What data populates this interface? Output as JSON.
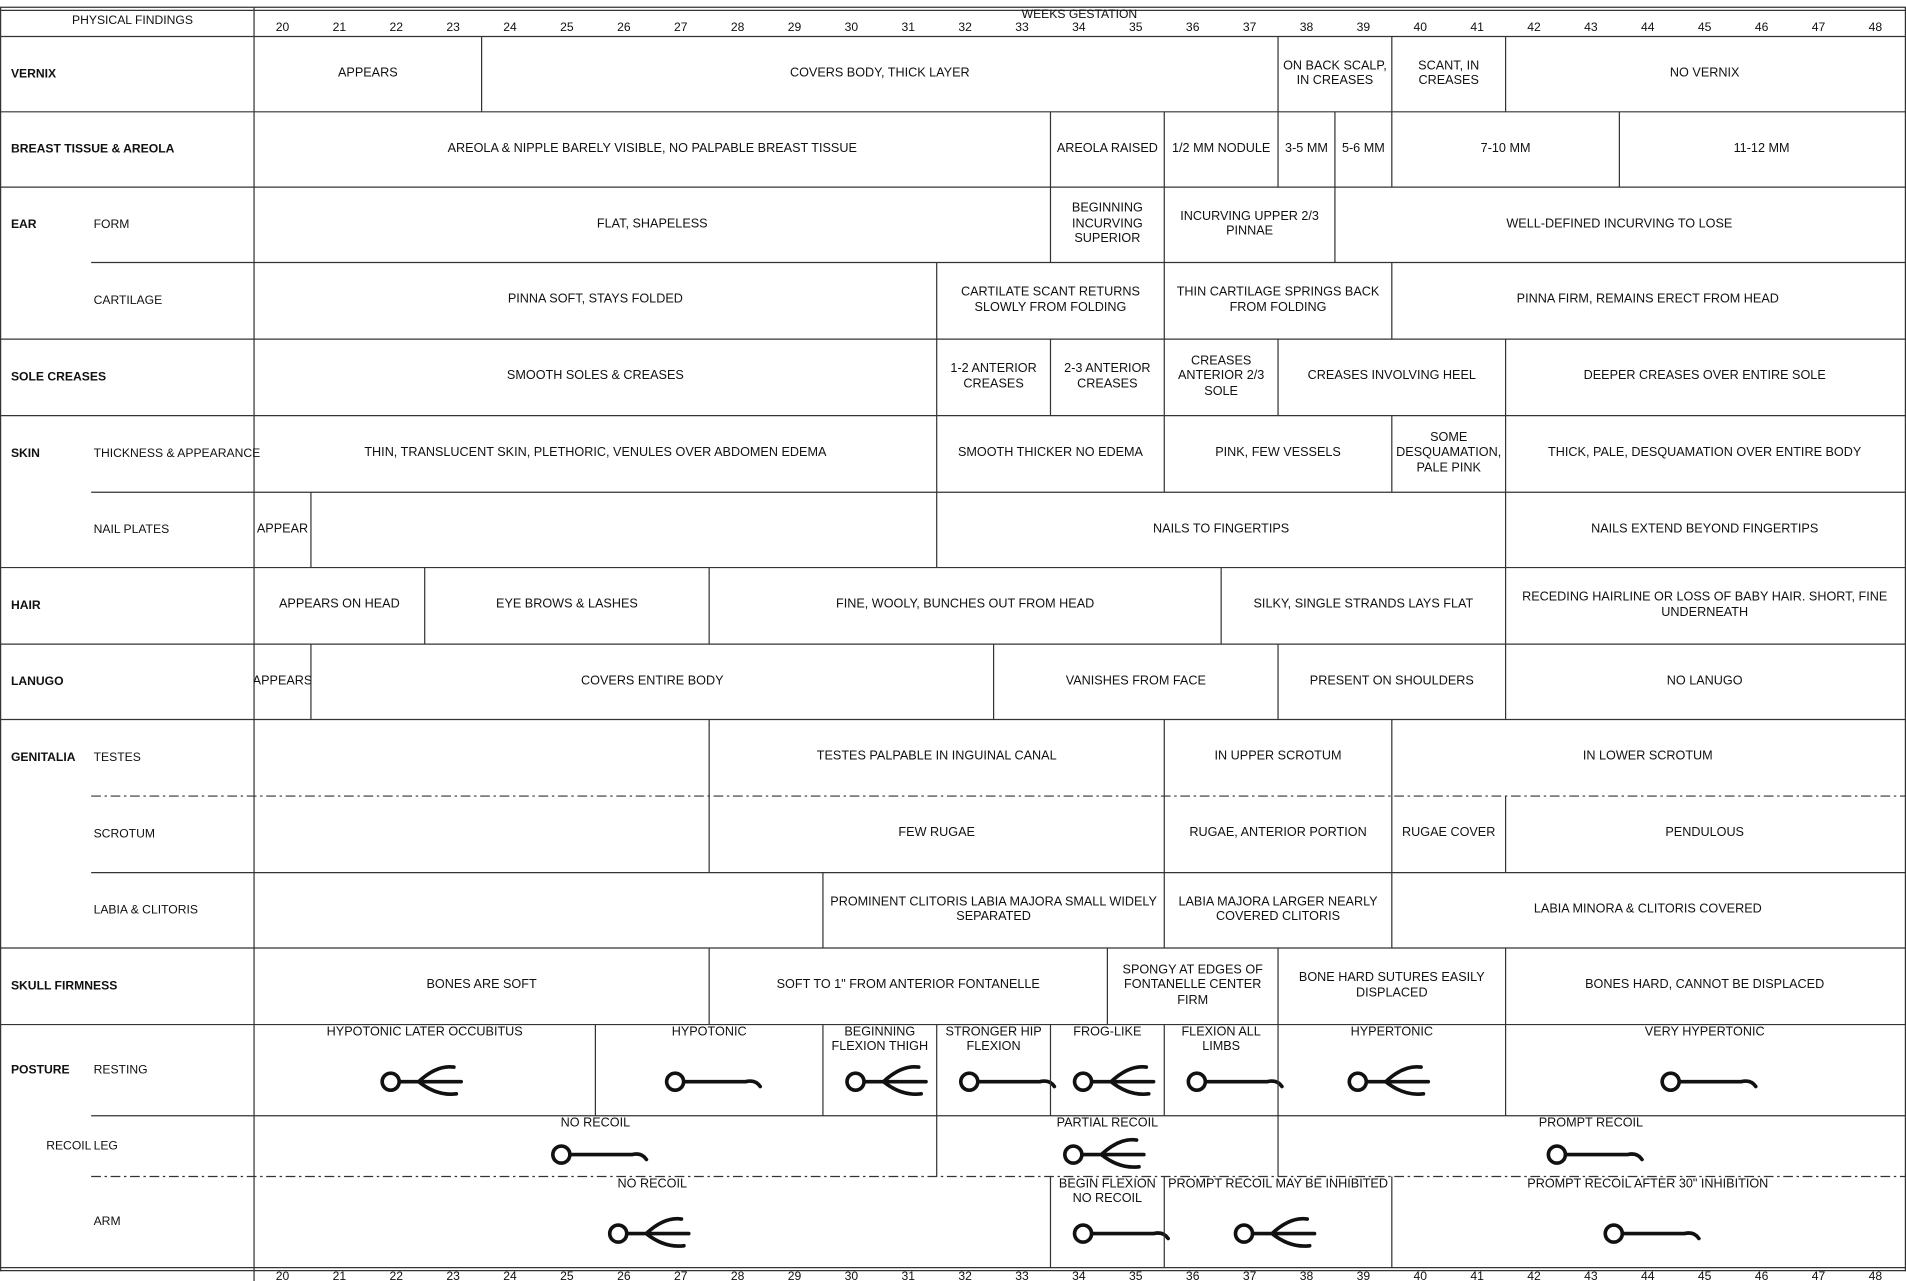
{
  "header": {
    "title": "PHYSICAL FINDINGS",
    "axis": "WEEKS GESTATION",
    "weeks": [
      20,
      21,
      22,
      23,
      24,
      25,
      26,
      27,
      28,
      29,
      30,
      31,
      32,
      33,
      34,
      35,
      36,
      37,
      38,
      39,
      40,
      41,
      42,
      43,
      44,
      45,
      46,
      47,
      48
    ]
  },
  "rows": [
    {
      "group": "VERNIX",
      "cells": [
        "APPEARS",
        "COVERS BODY, THICK LAYER",
        "ON BACK SCALP, IN CREASES",
        "SCANT, IN CREASES",
        "NO VERNIX"
      ]
    },
    {
      "group": "BREAST TISSUE & AREOLA",
      "cells": [
        "AREOLA & NIPPLE BARELY VISIBLE, NO PALPABLE BREAST TISSUE",
        "AREOLA RAISED",
        "1/2 MM NODULE",
        "3-5 MM",
        "5-6 MM",
        "7-10 MM",
        "11-12 MM"
      ]
    },
    {
      "group": "EAR",
      "label": "FORM",
      "cells": [
        "FLAT, SHAPELESS",
        "BEGINNING INCURVING SUPERIOR",
        "INCURVING UPPER 2/3 PINNAE",
        "WELL-DEFINED INCURVING TO LOSE"
      ]
    },
    {
      "label": "CARTILAGE",
      "cells": [
        "PINNA SOFT, STAYS FOLDED",
        "CARTILATE SCANT RETURNS SLOWLY FROM FOLDING",
        "THIN CARTILAGE SPRINGS BACK FROM FOLDING",
        "PINNA FIRM, REMAINS ERECT FROM HEAD"
      ]
    },
    {
      "group": "SOLE CREASES",
      "cells": [
        "SMOOTH SOLES & CREASES",
        "1-2 ANTERIOR CREASES",
        "2-3 ANTERIOR CREASES",
        "CREASES ANTERIOR 2/3 SOLE",
        "CREASES INVOLVING HEEL",
        "DEEPER CREASES OVER ENTIRE SOLE"
      ]
    },
    {
      "group": "SKIN",
      "label": "THICKNESS & APPEARANCE",
      "cells": [
        "THIN, TRANSLUCENT SKIN, PLETHORIC, VENULES OVER ABDOMEN EDEMA",
        "SMOOTH THICKER NO EDEMA",
        "PINK, FEW VESSELS",
        "SOME DESQUAMATION, PALE PINK",
        "THICK, PALE, DESQUAMATION OVER ENTIRE BODY"
      ]
    },
    {
      "label": "NAIL PLATES",
      "cells": [
        "APPEAR",
        null,
        "NAILS TO FINGERTIPS",
        "NAILS EXTEND BEYOND FINGERTIPS"
      ]
    },
    {
      "group": "HAIR",
      "cells": [
        "APPEARS ON HEAD",
        "EYE BROWS & LASHES",
        "FINE, WOOLY, BUNCHES OUT FROM HEAD",
        "SILKY, SINGLE STRANDS  LAYS FLAT",
        "RECEDING HAIRLINE OR LOSS OF BABY HAIR. SHORT, FINE UNDERNEATH"
      ]
    },
    {
      "group": "LANUGO",
      "cells": [
        "APPEARS",
        "COVERS ENTIRE BODY",
        "VANISHES FROM FACE",
        "PRESENT ON SHOULDERS",
        "NO LANUGO"
      ]
    },
    {
      "group": "GENITALIA",
      "label": "TESTES",
      "cells": [
        null,
        "TESTES PALPABLE IN INGUINAL CANAL",
        "IN UPPER SCROTUM",
        "IN LOWER SCROTUM"
      ]
    },
    {
      "label": "SCROTUM",
      "cells": [
        null,
        "FEW RUGAE",
        "RUGAE, ANTERIOR PORTION",
        "RUGAE COVER",
        "PENDULOUS"
      ]
    },
    {
      "label": "LABIA & CLITORIS",
      "cells": [
        null,
        "PROMINENT CLITORIS LABIA MAJORA SMALL WIDELY SEPARATED",
        "LABIA MAJORA LARGER NEARLY COVERED CLITORIS",
        "LABIA MINORA & CLITORIS COVERED"
      ]
    },
    {
      "group": "SKULL FIRMNESS",
      "cells": [
        "BONES ARE SOFT",
        "SOFT TO 1\" FROM ANTERIOR FONTANELLE",
        "SPONGY AT EDGES OF FONTANELLE CENTER FIRM",
        "BONE HARD SUTURES EASILY DISPLACED",
        "BONES HARD, CANNOT BE DISPLACED"
      ]
    },
    {
      "group": "POSTURE",
      "label": "RESTING",
      "cells": [
        "HYPOTONIC LATER OCCUBITUS",
        "HYPOTONIC",
        "BEGINNING FLEXION THIGH",
        "STRONGER HIP FLEXION",
        "FROG-LIKE",
        "FLEXION ALL LIMBS",
        "HYPERTONIC",
        "VERY HYPERTONIC"
      ]
    },
    {
      "group": "RECOIL",
      "label": "LEG",
      "cells": [
        "NO RECOIL",
        "PARTIAL RECOIL",
        "PROMPT RECOIL"
      ]
    },
    {
      "label": "ARM",
      "cells": [
        "NO RECOIL",
        "BEGIN FLEXION NO RECOIL",
        "PROMPT RECOIL MAY BE INHIBITED",
        "PROMPT RECOIL AFTER 30\" INHIBITION"
      ]
    }
  ]
}
